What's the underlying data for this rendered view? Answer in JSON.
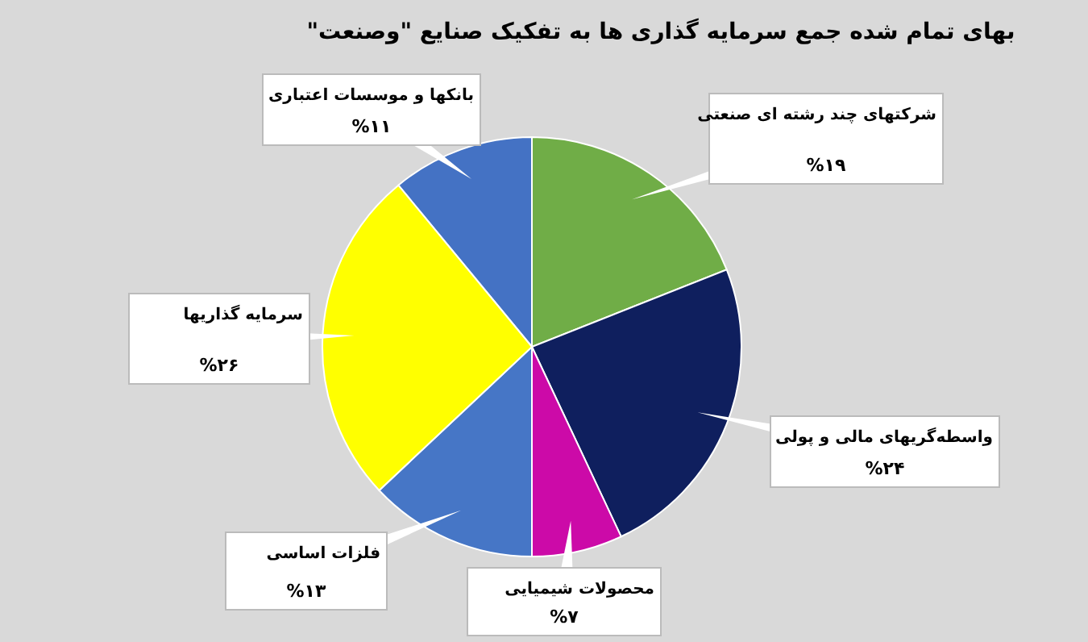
{
  "chart_data": {
    "type": "pie",
    "title": "بهای تمام شده جمع سرمایه گذاری ها به تفکیک صنایع \"وصنعت\"",
    "categories": [
      "بانکها و موسسات اعتباری",
      "شرکتهای چند رشته ای صنعتی",
      "واسطه‌گریهای مالی و پولی",
      "محصولات شیمیایی",
      "فلزات اساسی",
      "سرمایه گذاریها"
    ],
    "values": [
      11,
      19,
      24,
      7,
      13,
      26
    ],
    "value_labels": [
      "%۱۱",
      "%۱۹",
      "%۲۴",
      "%۷",
      "%۱۳",
      "%۲۶"
    ],
    "colors": [
      "#4472c4",
      "#70ad47",
      "#0f1f5e",
      "#cc0aa8",
      "#4676c6",
      "#ffff00"
    ]
  }
}
